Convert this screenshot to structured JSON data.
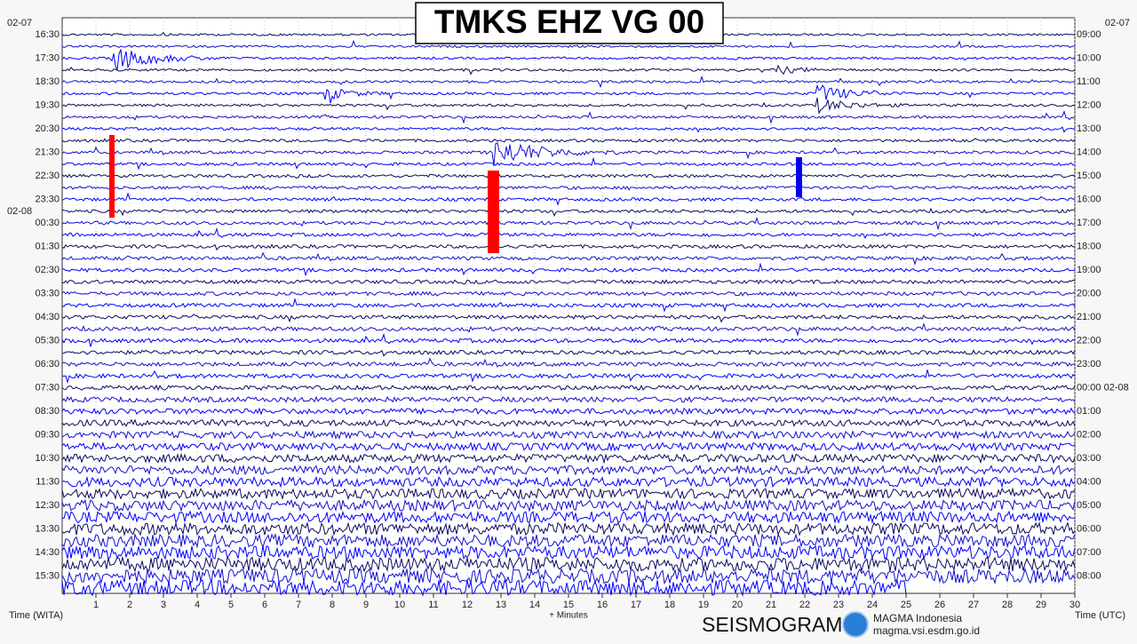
{
  "chart_data": {
    "type": "helicorder",
    "title": "TMKS EHZ VG 00",
    "xlabel": "+ Minutes",
    "left_axis_label": "Time (WITA)",
    "right_axis_label": "Time (UTC)",
    "left_dates": [
      "02-07",
      "02-08"
    ],
    "right_date": "02-07",
    "left_times": [
      "16:30",
      "17:30",
      "18:30",
      "19:30",
      "20:30",
      "21:30",
      "22:30",
      "23:30",
      "00:30",
      "01:30",
      "02:30",
      "03:30",
      "04:30",
      "05:30",
      "06:30",
      "07:30",
      "08:30",
      "09:30",
      "10:30",
      "11:30",
      "12:30",
      "13:30",
      "14:30",
      "15:30"
    ],
    "right_times": [
      "09:00",
      "10:00",
      "11:00",
      "12:00",
      "13:00",
      "14:00",
      "15:00",
      "16:00",
      "17:00",
      "18:00",
      "19:00",
      "20:00",
      "21:00",
      "22:00",
      "23:00",
      "00:00 02-08",
      "01:00",
      "02:00",
      "03:00",
      "04:00",
      "05:00",
      "06:00",
      "07:00",
      "08:00"
    ],
    "xlim": [
      0,
      30
    ],
    "xticks": [
      1,
      2,
      3,
      4,
      5,
      6,
      7,
      8,
      9,
      10,
      11,
      12,
      13,
      14,
      15,
      16,
      17,
      18,
      19,
      20,
      21,
      22,
      23,
      24,
      25,
      26,
      27,
      28,
      29,
      30
    ],
    "brand": "SEISMOGRAM",
    "org": "MAGMA Indonesia",
    "url": "magma.vsi.esdm.go.id"
  }
}
